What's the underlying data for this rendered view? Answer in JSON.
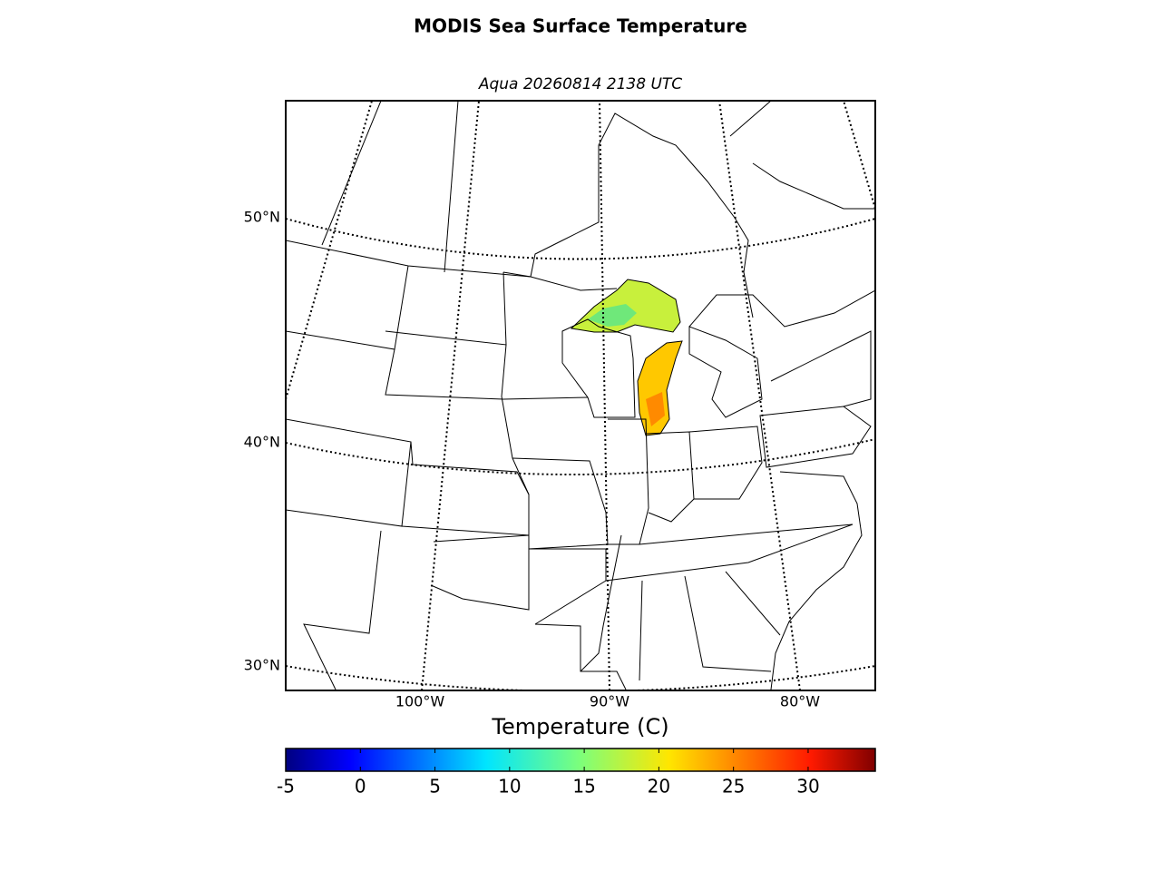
{
  "title": "MODIS Sea Surface Temperature",
  "subtitle": "Aqua 20260814 2138 UTC",
  "map": {
    "lat_labels": [
      "50°N",
      "40°N",
      "30°N"
    ],
    "lon_labels": [
      "100°W",
      "90°W",
      "80°W"
    ]
  },
  "colorbar": {
    "label": "Temperature (C)",
    "range": [
      -5,
      34.5
    ],
    "ticks": [
      -5,
      0,
      5,
      10,
      15,
      20,
      25,
      30
    ]
  }
}
